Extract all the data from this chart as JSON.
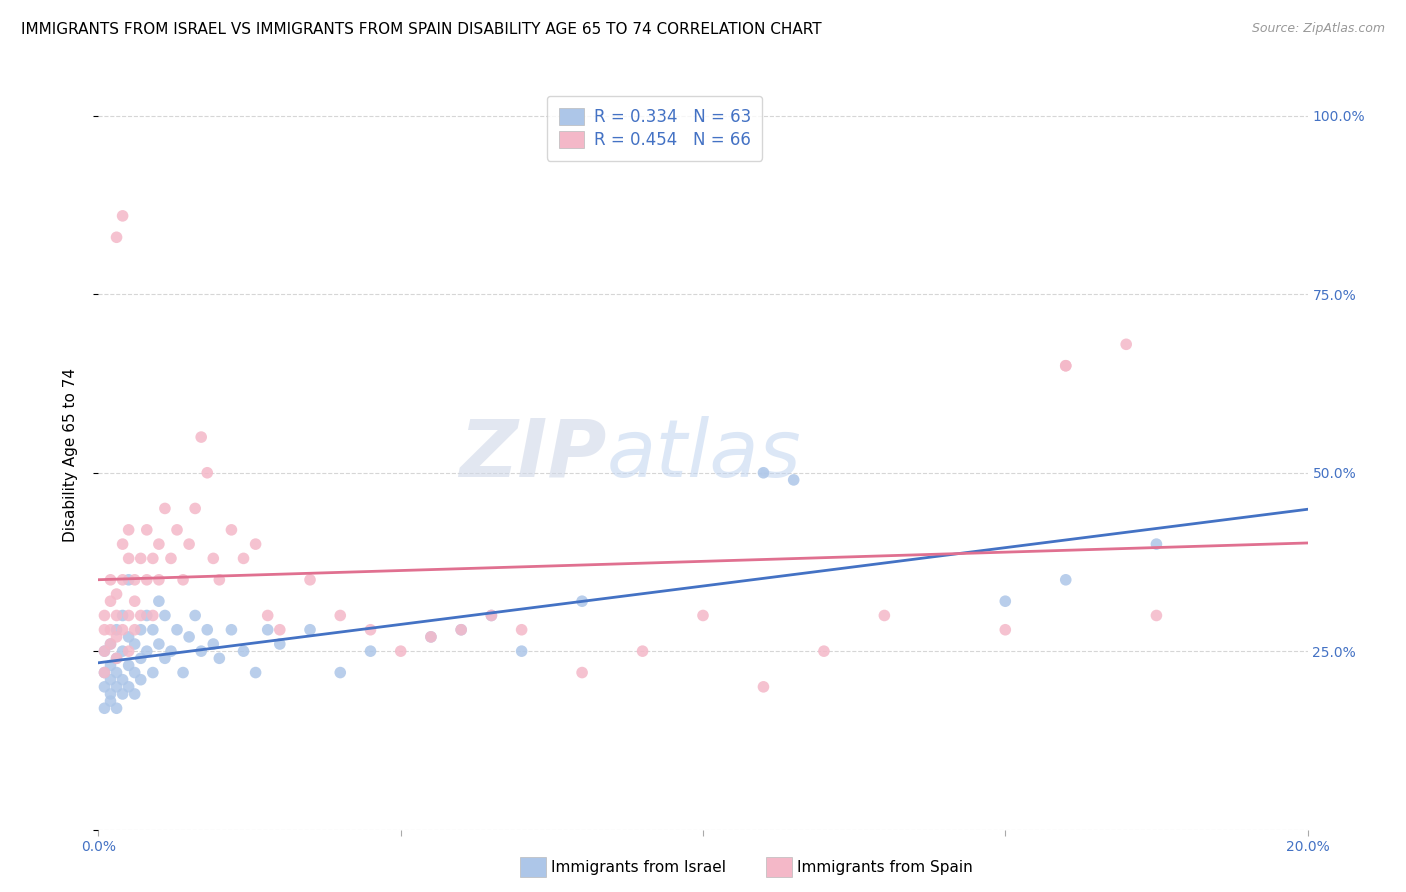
{
  "title": "IMMIGRANTS FROM ISRAEL VS IMMIGRANTS FROM SPAIN DISABILITY AGE 65 TO 74 CORRELATION CHART",
  "source": "Source: ZipAtlas.com",
  "ylabel_label": "Disability Age 65 to 74",
  "x_min": 0.0,
  "x_max": 0.2,
  "y_min": 0.0,
  "y_max": 1.05,
  "israel_color": "#adc6e8",
  "spain_color": "#f4b8c8",
  "israel_line_color": "#4472c4",
  "spain_line_color": "#e07090",
  "watermark_zip": "ZIP",
  "watermark_atlas": "atlas",
  "background_color": "#ffffff",
  "grid_color": "#cccccc",
  "title_fontsize": 11,
  "axis_label_fontsize": 11,
  "tick_fontsize": 10,
  "marker_size": 70,
  "israel_x": [
    0.001,
    0.001,
    0.001,
    0.001,
    0.002,
    0.002,
    0.002,
    0.002,
    0.002,
    0.003,
    0.003,
    0.003,
    0.003,
    0.003,
    0.004,
    0.004,
    0.004,
    0.004,
    0.005,
    0.005,
    0.005,
    0.005,
    0.006,
    0.006,
    0.006,
    0.007,
    0.007,
    0.007,
    0.008,
    0.008,
    0.009,
    0.009,
    0.01,
    0.01,
    0.011,
    0.011,
    0.012,
    0.013,
    0.014,
    0.015,
    0.016,
    0.017,
    0.018,
    0.019,
    0.02,
    0.022,
    0.024,
    0.026,
    0.028,
    0.03,
    0.035,
    0.04,
    0.045,
    0.055,
    0.06,
    0.065,
    0.07,
    0.08,
    0.11,
    0.115,
    0.15,
    0.16,
    0.175
  ],
  "israel_y": [
    0.22,
    0.2,
    0.17,
    0.25,
    0.19,
    0.23,
    0.21,
    0.18,
    0.26,
    0.22,
    0.2,
    0.24,
    0.28,
    0.17,
    0.25,
    0.21,
    0.19,
    0.3,
    0.23,
    0.27,
    0.2,
    0.35,
    0.22,
    0.26,
    0.19,
    0.28,
    0.24,
    0.21,
    0.3,
    0.25,
    0.22,
    0.28,
    0.26,
    0.32,
    0.24,
    0.3,
    0.25,
    0.28,
    0.22,
    0.27,
    0.3,
    0.25,
    0.28,
    0.26,
    0.24,
    0.28,
    0.25,
    0.22,
    0.28,
    0.26,
    0.28,
    0.22,
    0.25,
    0.27,
    0.28,
    0.3,
    0.25,
    0.32,
    0.5,
    0.49,
    0.32,
    0.35,
    0.4
  ],
  "spain_x": [
    0.001,
    0.001,
    0.001,
    0.001,
    0.002,
    0.002,
    0.002,
    0.002,
    0.003,
    0.003,
    0.003,
    0.003,
    0.004,
    0.004,
    0.004,
    0.005,
    0.005,
    0.005,
    0.005,
    0.006,
    0.006,
    0.006,
    0.007,
    0.007,
    0.008,
    0.008,
    0.009,
    0.009,
    0.01,
    0.01,
    0.011,
    0.012,
    0.013,
    0.014,
    0.015,
    0.016,
    0.017,
    0.018,
    0.019,
    0.02,
    0.022,
    0.024,
    0.026,
    0.028,
    0.03,
    0.035,
    0.04,
    0.045,
    0.05,
    0.055,
    0.06,
    0.065,
    0.07,
    0.08,
    0.09,
    0.1,
    0.11,
    0.12,
    0.13,
    0.15,
    0.16,
    0.17,
    0.175,
    0.003,
    0.004,
    0.16
  ],
  "spain_y": [
    0.28,
    0.3,
    0.25,
    0.22,
    0.32,
    0.28,
    0.35,
    0.26,
    0.3,
    0.24,
    0.33,
    0.27,
    0.35,
    0.4,
    0.28,
    0.3,
    0.38,
    0.25,
    0.42,
    0.32,
    0.35,
    0.28,
    0.38,
    0.3,
    0.42,
    0.35,
    0.38,
    0.3,
    0.35,
    0.4,
    0.45,
    0.38,
    0.42,
    0.35,
    0.4,
    0.45,
    0.55,
    0.5,
    0.38,
    0.35,
    0.42,
    0.38,
    0.4,
    0.3,
    0.28,
    0.35,
    0.3,
    0.28,
    0.25,
    0.27,
    0.28,
    0.3,
    0.28,
    0.22,
    0.25,
    0.3,
    0.2,
    0.25,
    0.3,
    0.28,
    0.65,
    0.68,
    0.3,
    0.83,
    0.86,
    0.65
  ]
}
